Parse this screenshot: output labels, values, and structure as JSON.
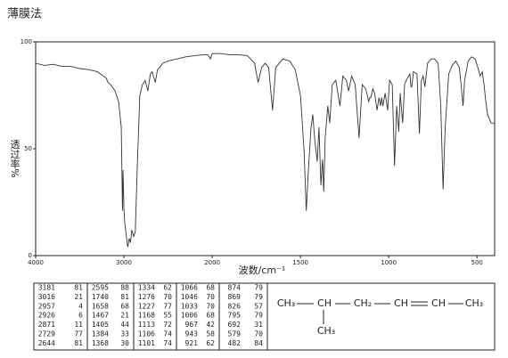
{
  "chart_data": {
    "type": "line",
    "title": "薄膜法",
    "x_label": "波数/cm⁻¹",
    "y_label": "透过率%",
    "x_scale_break": 2000,
    "x_scale_factor": 2,
    "xlim": [
      4000,
      400
    ],
    "xticks": [
      4000,
      3000,
      2000,
      1500,
      1000,
      500
    ],
    "ylim": [
      0,
      100
    ],
    "yticks": [
      0,
      50,
      100
    ],
    "grid": false,
    "color": "#333333",
    "x": [
      4000,
      3900,
      3800,
      3700,
      3600,
      3500,
      3400,
      3300,
      3200,
      3181,
      3150,
      3100,
      3060,
      3030,
      3016,
      3010,
      3000,
      2990,
      2957,
      2940,
      2926,
      2910,
      2890,
      2871,
      2850,
      2820,
      2790,
      2760,
      2729,
      2700,
      2680,
      2644,
      2620,
      2595,
      2560,
      2500,
      2400,
      2300,
      2200,
      2100,
      2050,
      2020,
      2000,
      1950,
      1900,
      1850,
      1800,
      1760,
      1740,
      1720,
      1700,
      1680,
      1658,
      1640,
      1600,
      1560,
      1530,
      1500,
      1480,
      1467,
      1455,
      1440,
      1430,
      1420,
      1405,
      1395,
      1384,
      1375,
      1368,
      1360,
      1345,
      1334,
      1320,
      1300,
      1276,
      1260,
      1240,
      1227,
      1210,
      1190,
      1168,
      1150,
      1130,
      1113,
      1106,
      1101,
      1090,
      1080,
      1066,
      1055,
      1046,
      1040,
      1033,
      1020,
      1006,
      995,
      980,
      967,
      955,
      943,
      935,
      921,
      910,
      900,
      880,
      874,
      869,
      860,
      840,
      826,
      815,
      805,
      795,
      780,
      760,
      740,
      720,
      705,
      692,
      680,
      660,
      640,
      620,
      600,
      590,
      579,
      570,
      550,
      530,
      510,
      495,
      482,
      470,
      460,
      450,
      440,
      420,
      400
    ],
    "values": [
      90,
      89,
      89.5,
      88.5,
      88.5,
      87.5,
      87,
      86,
      83,
      81,
      80,
      77,
      72,
      60,
      21,
      40,
      22,
      15,
      4,
      8,
      6,
      12,
      9,
      11,
      40,
      75,
      80,
      82,
      77,
      85,
      86,
      81,
      87,
      88,
      90,
      91,
      92,
      93,
      93.5,
      94,
      94,
      92,
      94.5,
      94.5,
      94,
      94,
      93.5,
      90,
      81,
      88,
      90,
      88,
      68,
      88,
      92,
      91,
      87,
      75,
      50,
      21,
      40,
      60,
      66,
      55,
      44,
      60,
      33,
      45,
      30,
      55,
      70,
      62,
      80,
      82,
      70,
      84,
      82,
      77,
      84,
      80,
      55,
      80,
      78,
      72,
      74,
      74,
      78,
      76,
      68,
      74,
      70,
      74,
      70,
      76,
      68,
      82,
      80,
      42,
      70,
      58,
      76,
      62,
      80,
      82,
      85,
      79,
      79,
      86,
      85,
      57,
      82,
      84,
      79,
      90,
      92,
      92,
      90,
      70,
      31,
      60,
      85,
      89,
      91,
      88,
      80,
      70,
      82,
      91,
      93,
      92,
      88,
      84,
      86,
      80,
      72,
      66,
      62,
      62
    ]
  },
  "peak_table": {
    "rows": [
      [
        3181,
        81
      ],
      [
        3016,
        21
      ],
      [
        2957,
        4
      ],
      [
        2926,
        6
      ],
      [
        2871,
        11
      ],
      [
        2729,
        77
      ],
      [
        2644,
        81
      ],
      [
        2595,
        88
      ],
      [
        1740,
        81
      ],
      [
        1658,
        68
      ],
      [
        1467,
        21
      ],
      [
        1405,
        44
      ],
      [
        1384,
        33
      ],
      [
        1368,
        30
      ],
      [
        1334,
        62
      ],
      [
        1276,
        70
      ],
      [
        1227,
        77
      ],
      [
        1168,
        55
      ],
      [
        1113,
        72
      ],
      [
        1106,
        74
      ],
      [
        1101,
        74
      ],
      [
        1066,
        68
      ],
      [
        1046,
        70
      ],
      [
        1033,
        70
      ],
      [
        1006,
        68
      ],
      [
        967,
        42
      ],
      [
        943,
        58
      ],
      [
        921,
        62
      ],
      [
        874,
        79
      ],
      [
        869,
        79
      ],
      [
        826,
        57
      ],
      [
        795,
        79
      ],
      [
        692,
        31
      ],
      [
        579,
        70
      ],
      [
        482,
        84
      ]
    ]
  },
  "structure": {
    "main": [
      "CH₃",
      "CH",
      "CH₂",
      "CH",
      "CH",
      "CH₃"
    ],
    "branch": "CH₃"
  }
}
